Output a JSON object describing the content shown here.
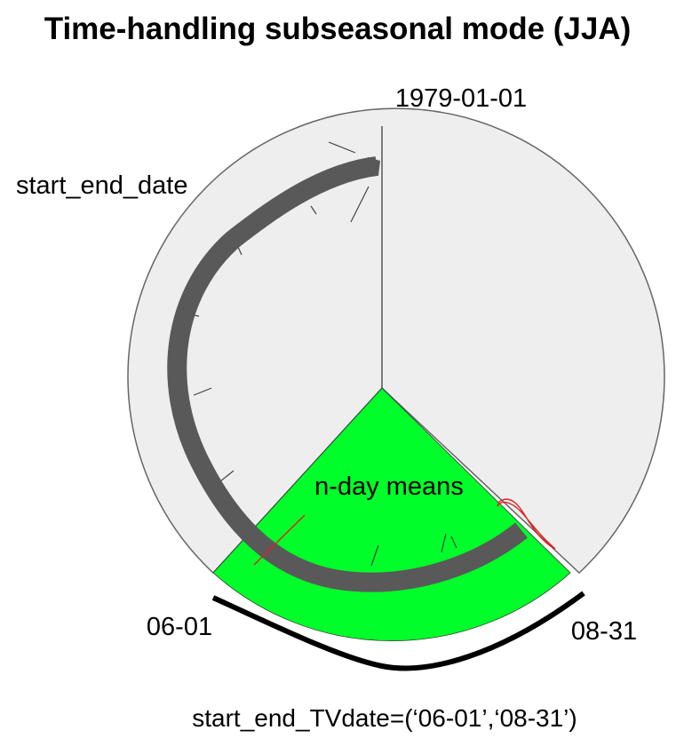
{
  "title": "Time-handling subseasonal mode (JJA)",
  "labels": {
    "start_date": "1979-01-01",
    "start_end_date": "start_end_date",
    "n_day_means": "n-day means",
    "tv_start": "06-01",
    "tv_end": "08-31",
    "tv_param": "start_end_TVdate=(‘06-01’,‘08-31’)"
  },
  "colors": {
    "outer_fill": "#eeeeee",
    "outer_stroke": "#666666",
    "season_fill": "#00ff2a",
    "main_arrow": "#595959",
    "season_marks": "#e02020",
    "brace": "#000000"
  }
}
